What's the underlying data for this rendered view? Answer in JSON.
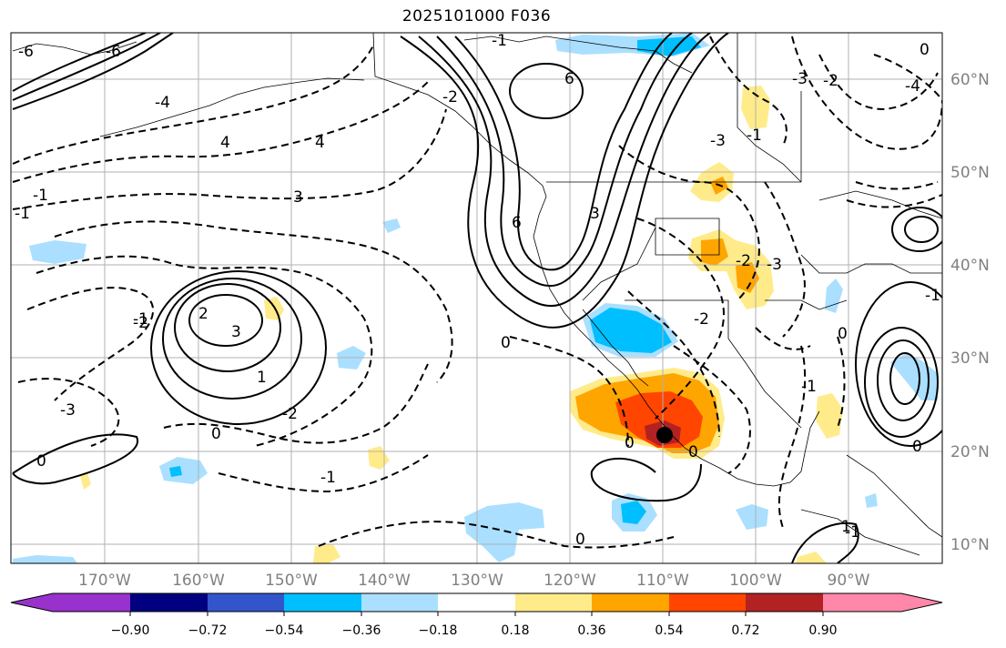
{
  "title": "2025101000 F036",
  "map": {
    "longitude_labels": [
      "170°W",
      "160°W",
      "150°W",
      "140°W",
      "130°W",
      "120°W",
      "110°W",
      "100°W",
      "90°W"
    ],
    "latitude_labels": [
      "60°N",
      "50°N",
      "40°N",
      "30°N",
      "20°N",
      "10°N"
    ],
    "contour_labels": [
      "6",
      "4",
      "4",
      "3",
      "2",
      "3",
      "1",
      "0",
      "0",
      "-1",
      "-2",
      "-1",
      "0",
      "6",
      "3",
      "-3",
      "-2",
      "-1",
      "0",
      "0",
      "-1",
      "0",
      "-2",
      "-3",
      "-4",
      "-6",
      "-6",
      "-4",
      "-2",
      "-3",
      "-1",
      "0",
      "-2",
      "-3",
      "-1",
      "-1",
      "-2",
      "-1",
      "0",
      "-1",
      "0",
      "1"
    ],
    "marker": "forecast point",
    "colors": {
      "neg_90": "#9932cc",
      "neg_72": "#000080",
      "neg_54": "#3355cc",
      "neg_36": "#00bfff",
      "neg_18": "#aadfff",
      "pos_18": "#ffeb8a",
      "pos_36": "#ffa500",
      "pos_54": "#ff4500",
      "pos_72": "#b22222",
      "pos_90": "#ff88aa"
    }
  },
  "colorbar": {
    "ticks": [
      "−0.90",
      "−0.72",
      "−0.54",
      "−0.36",
      "−0.18",
      "0.18",
      "0.36",
      "0.54",
      "0.72",
      "0.90"
    ],
    "colors": [
      "#9932cc",
      "#000080",
      "#3355cc",
      "#00bfff",
      "#aadfff",
      "#ffffff",
      "#ffeb8a",
      "#ffa500",
      "#ff4500",
      "#b22222",
      "#ff88aa"
    ]
  }
}
